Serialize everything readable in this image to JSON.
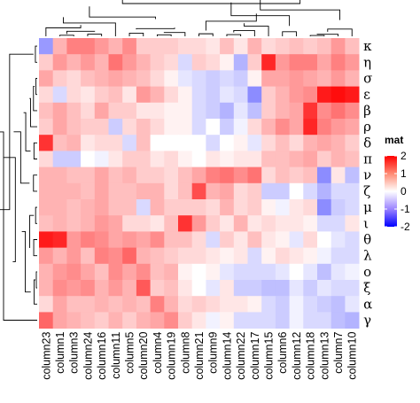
{
  "chart_data": {
    "type": "heatmap",
    "legend": {
      "title": "mat",
      "ticks": [
        2,
        1,
        0,
        -1,
        -2
      ],
      "tick_labels": [
        "2",
        "1",
        "0",
        "-1",
        "-2"
      ],
      "range": [
        -2,
        2
      ],
      "colors": {
        "low": "#0000ff",
        "mid": "#ffffff",
        "high": "#ff0000"
      },
      "placement": "right"
    },
    "row_labels": [
      "κ",
      "η",
      "σ",
      "ε",
      "β",
      "ρ",
      "δ",
      "π",
      "ν",
      "ζ",
      "μ",
      "ι",
      "θ",
      "λ",
      "ο",
      "ξ",
      "α",
      "γ"
    ],
    "col_labels": [
      "column23",
      "column1",
      "column3",
      "column24",
      "column16",
      "column11",
      "column5",
      "column20",
      "column4",
      "column19",
      "column8",
      "column21",
      "column9",
      "column14",
      "column22",
      "column17",
      "column15",
      "column6",
      "column12",
      "column18",
      "column13",
      "column7",
      "column10"
    ],
    "values": [
      [
        -0.8,
        0.6,
        1.0,
        1.0,
        0.8,
        0.6,
        0.9,
        0.4,
        0.4,
        0.4,
        0.3,
        0.3,
        0.2,
        0.5,
        0.2,
        0.6,
        0.3,
        0.4,
        0.5,
        0.4,
        0.5,
        0.8,
        0.5
      ],
      [
        0.4,
        0.8,
        0.6,
        0.8,
        0.6,
        1.1,
        0.8,
        0.6,
        0.4,
        0.3,
        -0.3,
        0.4,
        0.3,
        0.1,
        -0.6,
        0.4,
        1.7,
        0.8,
        1.0,
        1.0,
        0.7,
        1.0,
        0.8
      ],
      [
        0.7,
        0.4,
        0.3,
        0.5,
        0.6,
        0.7,
        0.6,
        0.5,
        0.3,
        0.1,
        -0.2,
        -0.3,
        -0.4,
        -0.3,
        -0.4,
        0.1,
        0.7,
        0.7,
        0.8,
        0.7,
        0.6,
        0.8,
        0.6
      ],
      [
        0.3,
        -0.3,
        0.3,
        0.2,
        0.4,
        0.5,
        0.2,
        0.8,
        0.6,
        0.3,
        0.1,
        -0.3,
        -0.4,
        -0.2,
        -0.3,
        -0.9,
        0.4,
        0.6,
        0.8,
        0.9,
        1.8,
        1.9,
        1.8
      ],
      [
        0.5,
        0.7,
        0.5,
        0.3,
        0.7,
        0.4,
        0.4,
        0.2,
        0.2,
        0.1,
        0.1,
        -0.3,
        -0.4,
        -0.6,
        -0.2,
        -0.5,
        0.4,
        0.6,
        0.7,
        1.6,
        0.9,
        1.1,
        0.9
      ],
      [
        0.4,
        0.7,
        0.5,
        0.4,
        0.4,
        -0.4,
        0.3,
        0.5,
        0.3,
        0.1,
        0.1,
        -0.3,
        0.0,
        -0.4,
        -0.1,
        0.3,
        0.6,
        0.9,
        0.7,
        1.7,
        1.0,
        0.8,
        0.7
      ],
      [
        1.6,
        0.5,
        0.6,
        0.2,
        0.3,
        0.3,
        -0.3,
        0.5,
        0.0,
        0.0,
        0.0,
        0.0,
        -0.3,
        0.0,
        0.1,
        -0.2,
        0.3,
        0.5,
        0.3,
        0.6,
        0.7,
        0.6,
        0.4
      ],
      [
        0.3,
        -0.4,
        -0.4,
        0.0,
        -0.1,
        0.2,
        0.4,
        0.4,
        0.2,
        0.3,
        0.1,
        0.0,
        0.2,
        0.1,
        0.2,
        0.2,
        0.5,
        0.5,
        0.6,
        0.7,
        0.4,
        0.6,
        0.5
      ],
      [
        0.6,
        0.6,
        0.5,
        0.5,
        0.7,
        0.5,
        0.6,
        0.4,
        0.4,
        0.3,
        0.5,
        0.7,
        1.0,
        1.1,
        0.9,
        1.1,
        0.3,
        0.5,
        0.4,
        0.5,
        -0.9,
        0.2,
        -0.5
      ],
      [
        0.6,
        0.6,
        0.6,
        0.5,
        0.7,
        0.5,
        0.5,
        0.6,
        0.6,
        0.3,
        0.5,
        1.4,
        0.6,
        0.7,
        0.3,
        0.4,
        -0.4,
        -0.4,
        0.0,
        -0.3,
        -0.6,
        -0.3,
        -0.3
      ],
      [
        0.6,
        0.6,
        0.5,
        0.6,
        0.7,
        0.5,
        0.5,
        -0.3,
        0.6,
        0.4,
        0.4,
        0.4,
        0.3,
        0.6,
        0.3,
        0.4,
        0.1,
        -0.1,
        0.2,
        0.3,
        -0.9,
        -0.4,
        -0.3
      ],
      [
        0.5,
        0.6,
        0.5,
        0.6,
        0.8,
        0.7,
        0.3,
        0.3,
        0.2,
        0.5,
        1.6,
        0.8,
        0.4,
        0.2,
        0.6,
        0.2,
        0.3,
        0.2,
        0.2,
        0.1,
        -0.3,
        -0.3,
        0.2
      ],
      [
        1.8,
        1.7,
        0.8,
        1.0,
        0.9,
        0.7,
        0.8,
        0.7,
        0.9,
        0.5,
        0.5,
        0.3,
        -0.3,
        0.4,
        0.2,
        0.5,
        0.2,
        0.1,
        -0.2,
        0.3,
        0.0,
        -0.2,
        -0.3
      ],
      [
        0.8,
        0.6,
        0.8,
        0.5,
        1.0,
        0.9,
        1.2,
        0.6,
        0.5,
        0.4,
        0.3,
        0.3,
        0.2,
        0.1,
        0.2,
        -0.3,
        0.1,
        0.3,
        0.2,
        0.1,
        -0.1,
        -0.3,
        -0.3
      ],
      [
        0.6,
        0.8,
        0.9,
        0.7,
        0.5,
        0.9,
        0.7,
        0.9,
        0.5,
        0.6,
        0.1,
        0.0,
        0.1,
        -0.2,
        -0.3,
        -0.3,
        -0.3,
        -0.2,
        0.0,
        -0.2,
        -0.5,
        -0.2,
        -0.1
      ],
      [
        0.6,
        0.9,
        0.8,
        0.9,
        0.6,
        0.8,
        0.6,
        1.3,
        0.4,
        0.5,
        0.2,
        0.0,
        -0.2,
        0.2,
        -0.4,
        -0.4,
        -0.5,
        -0.5,
        -0.2,
        -0.4,
        -0.2,
        -0.3,
        -0.3
      ],
      [
        0.3,
        0.7,
        0.5,
        0.5,
        0.6,
        0.5,
        0.6,
        0.5,
        1.0,
        0.6,
        0.3,
        0.4,
        0.3,
        0.2,
        0.2,
        0.1,
        -0.3,
        -0.4,
        -0.1,
        -0.3,
        -0.4,
        -0.5,
        -0.2
      ],
      [
        1.2,
        0.7,
        0.6,
        0.5,
        0.4,
        0.6,
        0.4,
        0.6,
        0.7,
        0.9,
        0.4,
        0.2,
        -0.1,
        0.1,
        -0.3,
        -0.3,
        -0.3,
        -0.4,
        -0.1,
        -0.3,
        -0.3,
        -0.5,
        -0.6
      ]
    ]
  }
}
